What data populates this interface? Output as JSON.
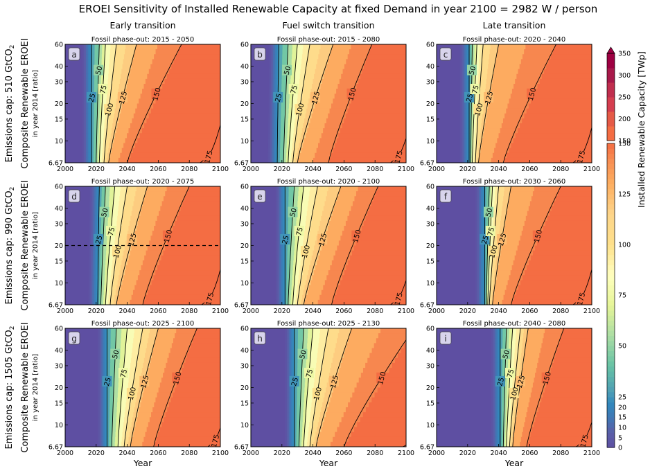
{
  "title": "EROEI Sensitivity of Installed Renewable Capacity at fixed Demand in year 2100 = 2982 W / person",
  "columns": [
    "Early transition",
    "Fuel switch transition",
    "Late transition"
  ],
  "rows": [
    {
      "main": "Emissions cap: 510 GtCO",
      "sub": "2",
      "line2": "Composite Renewable EROEI",
      "line3": "in year 2014 [ratio]"
    },
    {
      "main": "Emissions cap: 990 GtCO",
      "sub": "2",
      "line2": "Composite Renewable EROEI",
      "line3": "in year 2014 [ratio]"
    },
    {
      "main": "Emissions cap: 1505 GtCO",
      "sub": "2",
      "line2": "Composite Renewable EROEI",
      "line3": "in year 2014 [ratio]"
    }
  ],
  "xlabel": "Year",
  "colorbar": {
    "label": "Installed Renewable Capacity [TWp]",
    "lower_ticks": [
      "0",
      "5",
      "10",
      "15",
      "20",
      "25",
      "50",
      "75",
      "100",
      "125",
      "150"
    ],
    "upper_ticks": [
      "150",
      "200",
      "250",
      "300",
      "350"
    ],
    "colors": {
      "low": "#5e4fa2",
      "mid": "#ffffbf",
      "high": "#f46d43",
      "extend": "#9e0142"
    }
  },
  "chart_data": {
    "type": "heatmap",
    "x_range": [
      2000,
      2100
    ],
    "y_range": [
      6.67,
      60
    ],
    "y_scale": "log",
    "x_ticks": [
      "2000",
      "2020",
      "2040",
      "2060",
      "2080",
      "2100"
    ],
    "y_ticks": [
      "6.67",
      "10",
      "15",
      "20",
      "30",
      "40",
      "60"
    ],
    "y_tick_values": [
      6.67,
      10,
      15,
      20,
      30,
      40,
      60
    ],
    "contour_levels": [
      25,
      50,
      75,
      100,
      125,
      150,
      175
    ],
    "panels": [
      {
        "letter": "a",
        "subtitle": "Fossil phase-out: 2015 - 2050",
        "contours": {
          "25": [
            2017,
            2017
          ],
          "50": [
            2020,
            2022
          ],
          "75": [
            2022,
            2026
          ],
          "100": [
            2025,
            2033
          ],
          "125": [
            2028,
            2046
          ],
          "150": [
            2040,
            2075
          ],
          "175": [
            2087,
            2110
          ]
        },
        "labels": [
          "25",
          "50",
          "75",
          "100",
          "125",
          "150",
          "175"
        ]
      },
      {
        "letter": "b",
        "subtitle": "Fossil phase-out: 2015 - 2080",
        "contours": {
          "25": [
            2017,
            2018
          ],
          "50": [
            2021,
            2024
          ],
          "75": [
            2024,
            2030
          ],
          "100": [
            2027,
            2038
          ],
          "125": [
            2030,
            2053
          ],
          "150": [
            2050,
            2078
          ],
          "175": [
            2090,
            2112
          ]
        },
        "labels": [
          "25",
          "50",
          "75",
          "100",
          "125",
          "150",
          "175"
        ]
      },
      {
        "letter": "c",
        "subtitle": "Fossil phase-out: 2020 - 2040",
        "contours": {
          "25": [
            2021,
            2021
          ],
          "50": [
            2022,
            2023
          ],
          "75": [
            2023,
            2026
          ],
          "100": [
            2025,
            2030
          ],
          "125": [
            2027,
            2040
          ],
          "150": [
            2043,
            2077
          ],
          "175": [
            2088,
            2110
          ]
        },
        "labels": [
          "25",
          "50",
          "75",
          "100",
          "125",
          "150",
          "175"
        ]
      },
      {
        "letter": "d",
        "subtitle": "Fossil phase-out: 2020 - 2075",
        "contours": {
          "25": [
            2021,
            2022
          ],
          "50": [
            2023,
            2026
          ],
          "75": [
            2026,
            2032
          ],
          "100": [
            2029,
            2040
          ],
          "125": [
            2033,
            2053
          ],
          "150": [
            2050,
            2080
          ],
          "175": [
            2088,
            2110
          ]
        },
        "labels": [
          "25",
          "50",
          "75",
          "100",
          "125",
          "150",
          "175"
        ],
        "hline": 20
      },
      {
        "letter": "e",
        "subtitle": "Fossil phase-out: 2020 - 2100",
        "contours": {
          "25": [
            2022,
            2022
          ],
          "50": [
            2024,
            2028
          ],
          "75": [
            2027,
            2034
          ],
          "100": [
            2030,
            2043
          ],
          "125": [
            2034,
            2058
          ],
          "150": [
            2052,
            2082
          ],
          "175": [
            2090,
            2112
          ]
        },
        "labels": [
          "25",
          "50",
          "75",
          "100",
          "125",
          "150",
          "175"
        ]
      },
      {
        "letter": "f",
        "subtitle": "Fossil phase-out: 2030 - 2060",
        "contours": {
          "25": [
            2031,
            2031
          ],
          "50": [
            2032,
            2034
          ],
          "75": [
            2033,
            2036
          ],
          "100": [
            2034,
            2040
          ],
          "125": [
            2036,
            2048
          ],
          "150": [
            2048,
            2080
          ],
          "175": [
            2088,
            2110
          ]
        },
        "labels": [
          "25",
          "50",
          "75",
          "100",
          "125",
          "150",
          "175"
        ]
      },
      {
        "letter": "g",
        "subtitle": "Fossil phase-out: 2025 - 2100",
        "contours": {
          "25": [
            2027,
            2027
          ],
          "50": [
            2030,
            2033
          ],
          "75": [
            2034,
            2040
          ],
          "100": [
            2038,
            2050
          ],
          "125": [
            2042,
            2060
          ],
          "150": [
            2057,
            2085
          ],
          "175": [
            2092,
            2112
          ]
        },
        "labels": [
          "25",
          "50",
          "75",
          "100",
          "125",
          "150",
          "175"
        ]
      },
      {
        "letter": "h",
        "subtitle": "Fossil phase-out: 2025 - 2130",
        "contours": {
          "25": [
            2028,
            2028
          ],
          "50": [
            2031,
            2034
          ],
          "75": [
            2034,
            2040
          ],
          "100": [
            2038,
            2050
          ],
          "125": [
            2042,
            2065
          ],
          "150": [
            2060,
            2105
          ],
          "175": [
            2098,
            2130
          ]
        },
        "labels": [
          "25",
          "50",
          "75",
          "100",
          "125",
          "150",
          "175"
        ]
      },
      {
        "letter": "i",
        "subtitle": "Fossil phase-out: 2040 - 2080",
        "contours": {
          "25": [
            2041,
            2041
          ],
          "50": [
            2043,
            2045
          ],
          "75": [
            2045,
            2049
          ],
          "100": [
            2047,
            2054
          ],
          "125": [
            2049,
            2059
          ],
          "150": [
            2058,
            2082
          ],
          "175": [
            2090,
            2112
          ]
        },
        "labels": [
          "25",
          "50",
          "75",
          "100",
          "125",
          "150",
          "175"
        ]
      }
    ]
  }
}
